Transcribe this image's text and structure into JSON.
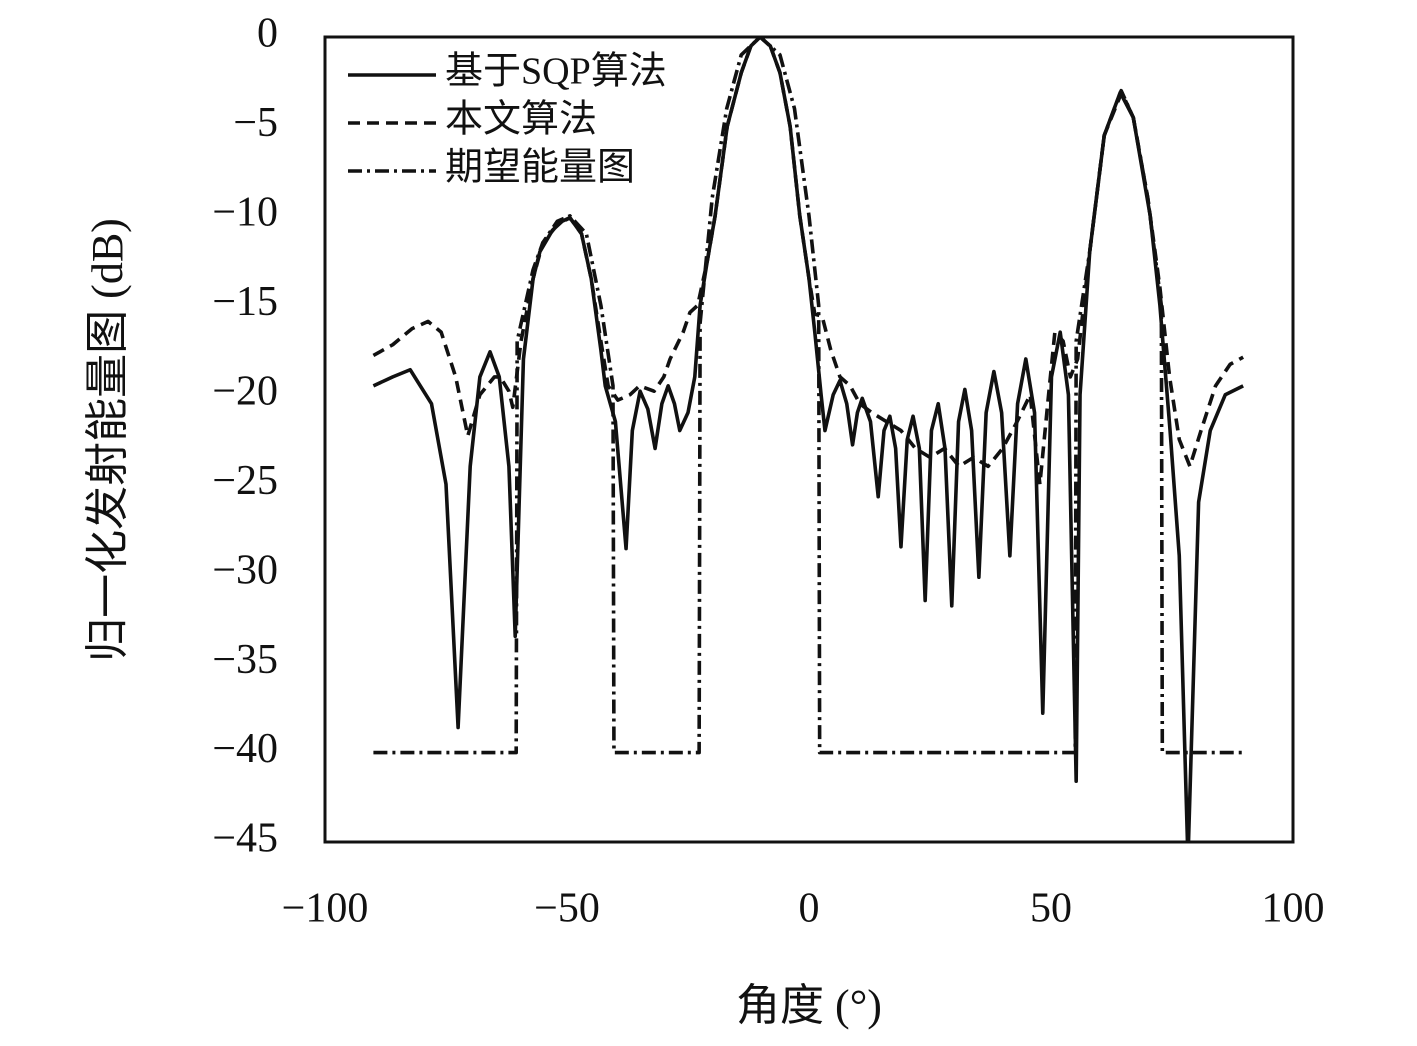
{
  "chart_data": {
    "type": "line",
    "xlabel": "角度 (°)",
    "ylabel": "归一化发射能量图 (dB)",
    "xlim": [
      -100,
      100
    ],
    "ylim": [
      -45,
      0
    ],
    "xticks": [
      {
        "value": -100,
        "label": "−100"
      },
      {
        "value": -50,
        "label": "−50"
      },
      0,
      50,
      100
    ],
    "yticks": [
      0,
      {
        "value": -5,
        "label": "−5"
      },
      {
        "value": -10,
        "label": "−10"
      },
      {
        "value": -15,
        "label": "−15"
      },
      {
        "value": -20,
        "label": "−20"
      },
      {
        "value": -25,
        "label": "−25"
      },
      {
        "value": -30,
        "label": "−30"
      },
      {
        "value": -35,
        "label": "−35"
      },
      {
        "value": -40,
        "label": "−40"
      },
      {
        "value": -45,
        "label": "−45"
      }
    ],
    "grid": false,
    "legend": "upper left",
    "series": [
      {
        "name": "基于SQP算法",
        "color": "#111111",
        "style": "solid",
        "x": [
          -90,
          -86,
          -82.4,
          -78,
          -75,
          -72.5,
          -70,
          -68,
          -65.9,
          -64,
          -62,
          -60.7,
          -59,
          -57,
          -55.6,
          -53,
          -51,
          -49.4,
          -47,
          -45,
          -43,
          -42.1,
          -40,
          -37.8,
          -36.5,
          -34.9,
          -33.3,
          -31.8,
          -30.4,
          -29.1,
          -27.8,
          -26.7,
          -25,
          -23.6,
          -22.5,
          -21,
          -19.4,
          -16.9,
          -14,
          -12,
          -10.1,
          -8,
          -6,
          -3.9,
          -1.9,
          0,
          1.2,
          2.5,
          3.3,
          5,
          6.4,
          7.8,
          9,
          10,
          11,
          12.7,
          14.3,
          15.5,
          16.7,
          17.9,
          19,
          20.3,
          21.5,
          22.8,
          24,
          25.3,
          26.7,
          28.1,
          29.5,
          30.9,
          32.2,
          33.6,
          35.1,
          36.6,
          38.2,
          39.8,
          41.5,
          43.1,
          44.8,
          46.6,
          48.3,
          50.1,
          51.9,
          53.6,
          55.2,
          56,
          58,
          61,
          64.3,
          67,
          70.5,
          72.5,
          74.6,
          76.5,
          78.3,
          80.5,
          82.9,
          86,
          89.7
        ],
        "values": [
          -19.5,
          -19,
          -18.6,
          -20.5,
          -25,
          -38.6,
          -24,
          -19,
          -17.6,
          -19,
          -24,
          -33.5,
          -18,
          -13.5,
          -12,
          -10.8,
          -10.3,
          -10.1,
          -11,
          -13.5,
          -17.5,
          -19.5,
          -21.5,
          -28.6,
          -22,
          -19.8,
          -20.8,
          -23,
          -20.5,
          -19.5,
          -20.5,
          -22,
          -21,
          -19,
          -15,
          -12.5,
          -10,
          -5,
          -2,
          -0.5,
          0,
          -0.5,
          -2,
          -5,
          -10,
          -13.5,
          -16.5,
          -20,
          -22,
          -20,
          -19.2,
          -20.5,
          -22.8,
          -21,
          -20.2,
          -21.5,
          -25.7,
          -22,
          -21.2,
          -23,
          -28.5,
          -22.5,
          -21.2,
          -23,
          -31.5,
          -22,
          -20.5,
          -23,
          -31.8,
          -21.5,
          -19.7,
          -22,
          -30.2,
          -21,
          -18.7,
          -21,
          -29,
          -20.5,
          -18,
          -21,
          -37.8,
          -19,
          -16.5,
          -20,
          -41.6,
          -20,
          -12,
          -5.5,
          -3.1,
          -4.5,
          -10,
          -15,
          -22,
          -29,
          -46,
          -26,
          -22,
          -20,
          -19.5
        ]
      },
      {
        "name": "本文算法",
        "color": "#111111",
        "style": "dashed",
        "x": [
          -90,
          -86,
          -82,
          -78.7,
          -76,
          -73,
          -70.5,
          -68,
          -65,
          -63.8,
          -62,
          -61.2,
          -59.5,
          -57,
          -55,
          -52,
          -49.4,
          -47,
          -45,
          -43,
          -41.5,
          -39.5,
          -37,
          -35,
          -32,
          -30,
          -28.7,
          -26,
          -24.6,
          -23,
          -21,
          -19.4,
          -16.9,
          -14,
          -12,
          -10.1,
          -8,
          -6,
          -3.9,
          -1.9,
          0,
          1.2,
          2.7,
          4.5,
          6.4,
          8.5,
          10.5,
          13,
          16,
          19,
          22,
          25,
          28,
          31,
          34,
          37,
          40,
          43,
          45.7,
          47.7,
          49.5,
          50.8,
          52.5,
          54,
          55.5,
          58,
          61,
          64.6,
          67,
          70,
          72.5,
          74.5,
          76.5,
          78.7,
          81,
          84,
          87,
          89.7
        ],
        "values": [
          -17.8,
          -17.2,
          -16.3,
          -15.9,
          -16.5,
          -19,
          -22.3,
          -20,
          -19,
          -19,
          -19.8,
          -20.7,
          -17,
          -13.5,
          -11.5,
          -10.5,
          -10.1,
          -11,
          -13.5,
          -17,
          -19.5,
          -20.3,
          -20,
          -19.5,
          -19.8,
          -19,
          -18,
          -16.5,
          -15.4,
          -15,
          -12.5,
          -10,
          -5,
          -2,
          -0.5,
          0,
          -0.5,
          -2,
          -5,
          -10,
          -13.5,
          -15.5,
          -15.6,
          -17.5,
          -19,
          -19.5,
          -20.5,
          -21,
          -21.5,
          -22,
          -23,
          -23.5,
          -23,
          -24,
          -23.5,
          -24,
          -23,
          -21.5,
          -20,
          -25,
          -20,
          -16.5,
          -17,
          -19,
          -18,
          -12,
          -5.5,
          -3.1,
          -4.5,
          -9,
          -14,
          -19,
          -22.5,
          -24,
          -22,
          -19.5,
          -18.3,
          -17.9
        ]
      },
      {
        "name": "期望能量图",
        "color": "#111111",
        "style": "dashdot",
        "x": [
          -90,
          -60.5,
          -60.3,
          -57,
          -55,
          -52,
          -49.4,
          -46,
          -43,
          -40.5,
          -40.3,
          -22.7,
          -22.5,
          -20,
          -17,
          -14,
          -10.1,
          -6,
          -3,
          0,
          2,
          2.2,
          55,
          55.2,
          58,
          61,
          64.5,
          67,
          70,
          72.8,
          73,
          90
        ],
        "values": [
          -40,
          -40,
          -17,
          -13,
          -11.5,
          -10.3,
          -10,
          -11,
          -15,
          -19.5,
          -40,
          -40,
          -16,
          -9,
          -4,
          -1,
          0,
          -1,
          -4,
          -10,
          -15,
          -40,
          -40,
          -17,
          -12,
          -5.5,
          -3,
          -4.5,
          -9,
          -15,
          -40,
          -40
        ]
      }
    ]
  }
}
